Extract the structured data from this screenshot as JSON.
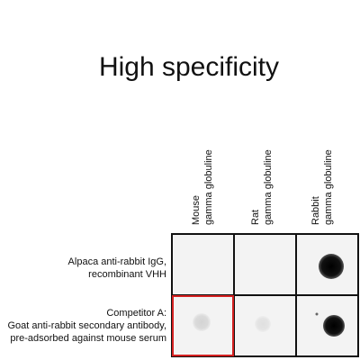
{
  "title": "High specificity",
  "columns": [
    {
      "lines": [
        "Mouse",
        "gamma globuline"
      ]
    },
    {
      "lines": [
        "Rat",
        "gamma globuline"
      ]
    },
    {
      "lines": [
        "Rabbit",
        "gamma globuline"
      ]
    }
  ],
  "rows": [
    {
      "lines": [
        "Alpaca anti-rabbit IgG,",
        "recombinant VHH"
      ]
    },
    {
      "lines": [
        "Competitor A:",
        "Goat anti-rabbit secondary antibody,",
        "pre-adsorbed against mouse serum"
      ]
    }
  ]
}
